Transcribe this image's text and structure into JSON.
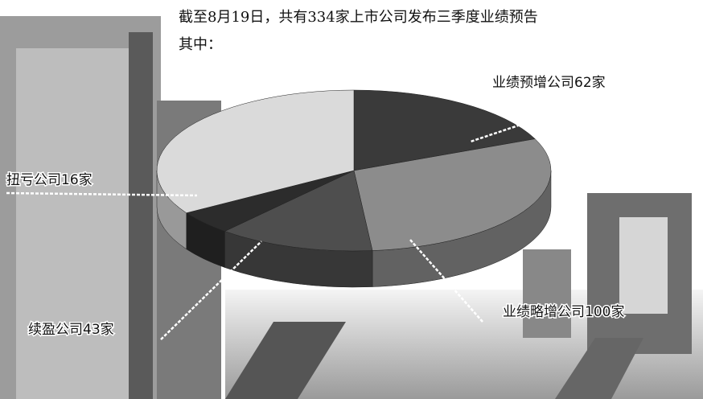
{
  "chart_data": {
    "type": "pie3d",
    "title": "截至8月19日，共有334家上市公司发布三季度业绩预告",
    "subtitle": "其中：",
    "categories": [
      "业绩预增公司",
      "业绩略增公司",
      "续盈公司",
      "扭亏公司",
      null
    ],
    "values": [
      62,
      100,
      43,
      16,
      113
    ],
    "value_labels": [
      "62家",
      "100家",
      "43家",
      "16家",
      null
    ],
    "colors": [
      "#3a3a3a",
      "#8c8c8c",
      "#4e4e4e",
      "#2c2c2c",
      "#dadada"
    ]
  }
}
